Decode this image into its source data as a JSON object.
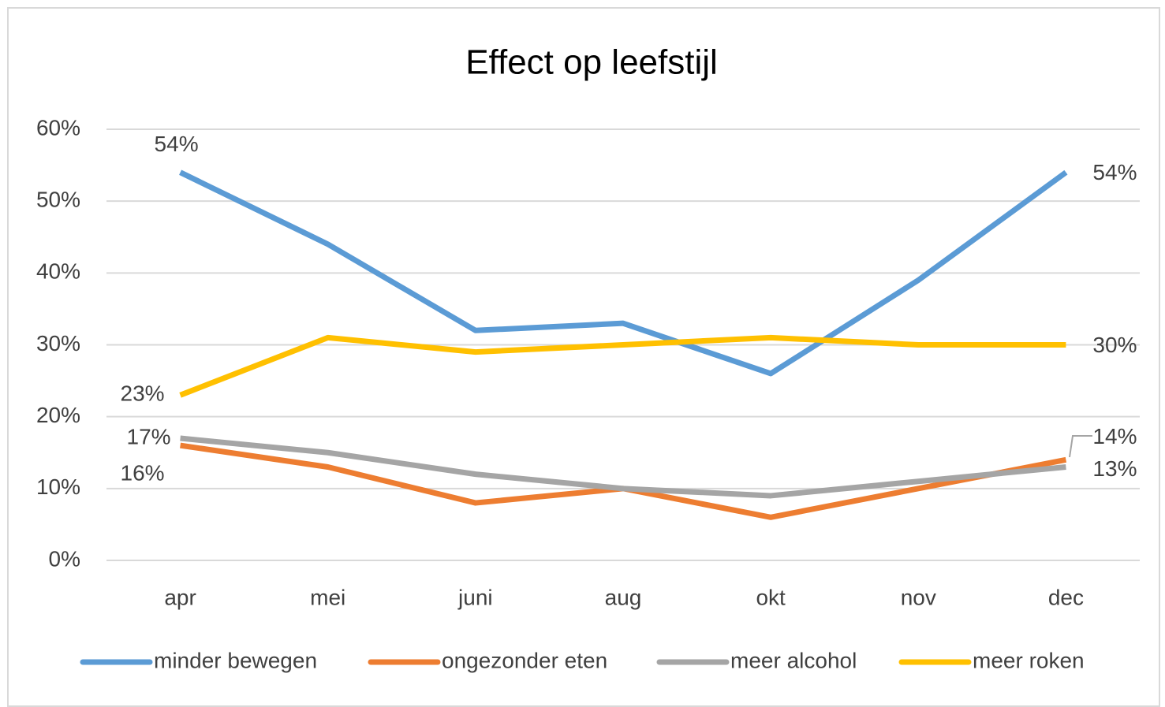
{
  "chart_data": {
    "type": "line",
    "title": "Effect op leefstijl",
    "categories": [
      "apr",
      "mei",
      "juni",
      "aug",
      "okt",
      "nov",
      "dec"
    ],
    "ylim": [
      0,
      60
    ],
    "yticks": [
      {
        "value": 0,
        "label": "0%"
      },
      {
        "value": 10,
        "label": "10%"
      },
      {
        "value": 20,
        "label": "20%"
      },
      {
        "value": 30,
        "label": "30%"
      },
      {
        "value": 40,
        "label": "40%"
      },
      {
        "value": 50,
        "label": "50%"
      },
      {
        "value": 60,
        "label": "60%"
      }
    ],
    "grid": true,
    "legend": "bottom",
    "series": [
      {
        "name": "minder bewegen",
        "color": "#5b9bd5",
        "values": [
          54,
          44,
          32,
          33,
          26,
          39,
          54
        ],
        "value_labels": [
          "54%",
          null,
          null,
          null,
          null,
          null,
          "54%"
        ]
      },
      {
        "name": "ongezonder eten",
        "color": "#ed7d31",
        "values": [
          16,
          13,
          8,
          10,
          6,
          10,
          14
        ],
        "value_labels": [
          "16%",
          null,
          null,
          null,
          null,
          null,
          "14%"
        ]
      },
      {
        "name": "meer alcohol",
        "color": "#a5a5a5",
        "values": [
          17,
          15,
          12,
          10,
          9,
          11,
          13
        ],
        "value_labels": [
          "17%",
          null,
          null,
          null,
          null,
          null,
          "13%"
        ]
      },
      {
        "name": "meer roken",
        "color": "#ffc000",
        "values": [
          23,
          31,
          29,
          30,
          31,
          30,
          30
        ],
        "value_labels": [
          "23%",
          null,
          null,
          null,
          null,
          null,
          "30%"
        ]
      }
    ]
  }
}
